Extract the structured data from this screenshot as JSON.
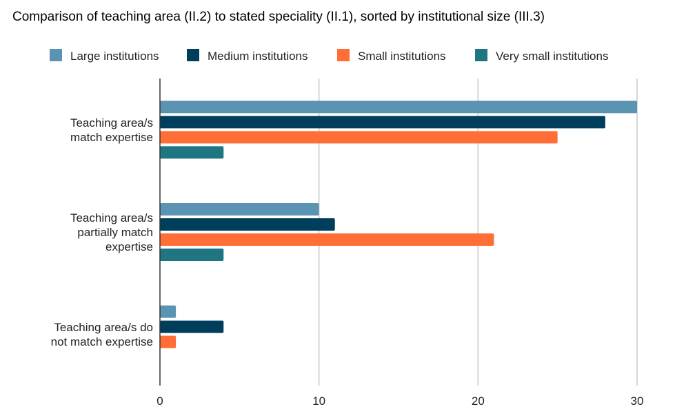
{
  "chart_data": {
    "type": "bar",
    "orientation": "horizontal",
    "title": "Comparison of teaching area (II.2) to stated speciality (II.1), sorted by institutional size (III.3)",
    "xlabel": "",
    "ylabel": "",
    "xlim": [
      0,
      30
    ],
    "xticks": [
      0,
      10,
      20,
      30
    ],
    "grid": true,
    "legend_position": "top",
    "categories": [
      [
        "Teaching area/s",
        "match expertise"
      ],
      [
        "Teaching area/s",
        "partially match",
        "expertise"
      ],
      [
        "Teaching area/s do",
        "not match expertise"
      ]
    ],
    "series": [
      {
        "name": "Large institutions",
        "color": "#5b93b3",
        "values": [
          30,
          10,
          1
        ]
      },
      {
        "name": "Medium institutions",
        "color": "#003f5c",
        "values": [
          28,
          11,
          4
        ]
      },
      {
        "name": "Small institutions",
        "color": "#ff6e36",
        "values": [
          25,
          21,
          1
        ]
      },
      {
        "name": "Very small institutions",
        "color": "#1f7581",
        "values": [
          4,
          4,
          0
        ]
      }
    ]
  }
}
